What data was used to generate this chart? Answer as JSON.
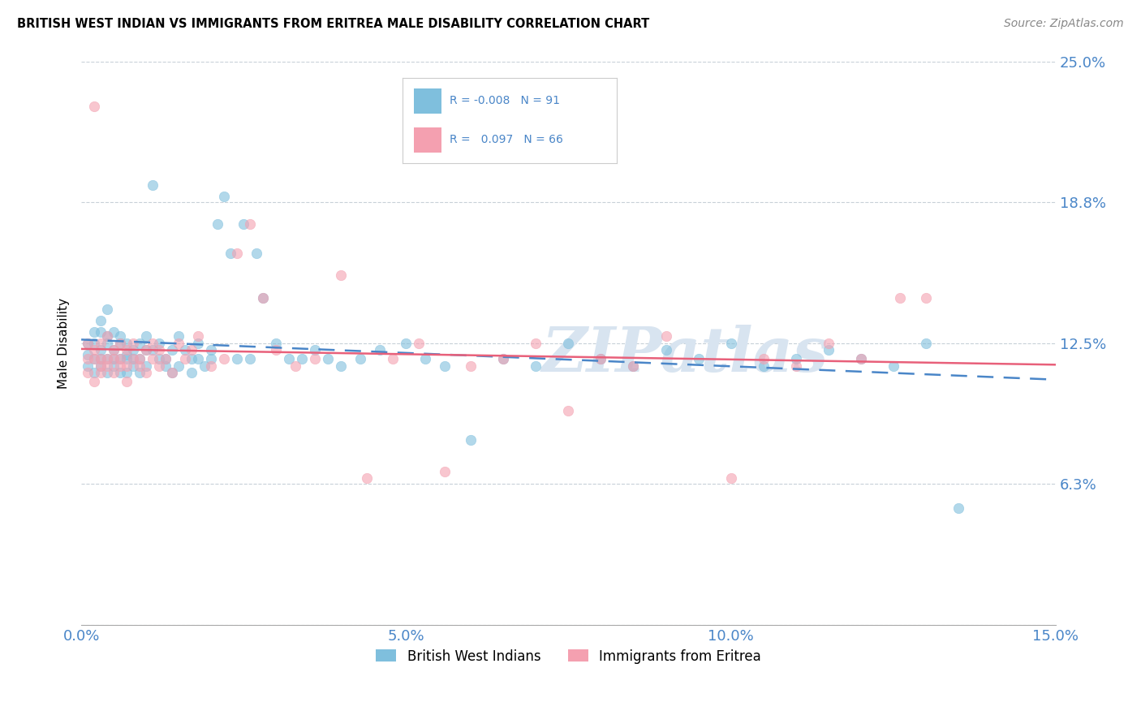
{
  "title": "BRITISH WEST INDIAN VS IMMIGRANTS FROM ERITREA MALE DISABILITY CORRELATION CHART",
  "source": "Source: ZipAtlas.com",
  "ylabel": "Male Disability",
  "xlim": [
    0.0,
    0.15
  ],
  "ylim": [
    0.0,
    0.25
  ],
  "yticks": [
    0.0,
    0.0625,
    0.125,
    0.1875,
    0.25
  ],
  "ytick_labels": [
    "",
    "6.3%",
    "12.5%",
    "18.8%",
    "25.0%"
  ],
  "xticks": [
    0.0,
    0.025,
    0.05,
    0.075,
    0.1,
    0.125,
    0.15
  ],
  "xtick_labels": [
    "0.0%",
    "",
    "5.0%",
    "",
    "10.0%",
    "",
    "15.0%"
  ],
  "color_blue": "#7fbfdd",
  "color_pink": "#f4a0b0",
  "color_trend_blue": "#4a86c8",
  "color_trend_pink": "#e8607a",
  "color_axis_labels": "#4a86c8",
  "color_grid": "#c8d0d8",
  "color_watermark": "#d8e4f0",
  "series1_name": "British West Indians",
  "series2_name": "Immigrants from Eritrea",
  "blue_x": [
    0.001,
    0.001,
    0.001,
    0.002,
    0.002,
    0.002,
    0.002,
    0.003,
    0.003,
    0.003,
    0.003,
    0.003,
    0.004,
    0.004,
    0.004,
    0.004,
    0.004,
    0.005,
    0.005,
    0.005,
    0.005,
    0.006,
    0.006,
    0.006,
    0.006,
    0.007,
    0.007,
    0.007,
    0.007,
    0.008,
    0.008,
    0.008,
    0.009,
    0.009,
    0.009,
    0.01,
    0.01,
    0.01,
    0.011,
    0.011,
    0.012,
    0.012,
    0.013,
    0.013,
    0.014,
    0.014,
    0.015,
    0.015,
    0.016,
    0.017,
    0.017,
    0.018,
    0.018,
    0.019,
    0.02,
    0.02,
    0.021,
    0.022,
    0.023,
    0.024,
    0.025,
    0.026,
    0.027,
    0.028,
    0.03,
    0.032,
    0.034,
    0.036,
    0.038,
    0.04,
    0.043,
    0.046,
    0.05,
    0.053,
    0.056,
    0.06,
    0.065,
    0.07,
    0.075,
    0.08,
    0.085,
    0.09,
    0.095,
    0.1,
    0.105,
    0.11,
    0.115,
    0.12,
    0.125,
    0.13,
    0.135
  ],
  "blue_y": [
    0.125,
    0.12,
    0.115,
    0.13,
    0.118,
    0.112,
    0.125,
    0.122,
    0.118,
    0.13,
    0.115,
    0.135,
    0.128,
    0.118,
    0.125,
    0.112,
    0.14,
    0.122,
    0.118,
    0.13,
    0.115,
    0.125,
    0.118,
    0.112,
    0.128,
    0.12,
    0.118,
    0.125,
    0.112,
    0.122,
    0.118,
    0.115,
    0.125,
    0.118,
    0.112,
    0.122,
    0.128,
    0.115,
    0.195,
    0.122,
    0.118,
    0.125,
    0.115,
    0.118,
    0.122,
    0.112,
    0.128,
    0.115,
    0.122,
    0.118,
    0.112,
    0.125,
    0.118,
    0.115,
    0.122,
    0.118,
    0.178,
    0.19,
    0.165,
    0.118,
    0.178,
    0.118,
    0.165,
    0.145,
    0.125,
    0.118,
    0.118,
    0.122,
    0.118,
    0.115,
    0.118,
    0.122,
    0.125,
    0.118,
    0.115,
    0.082,
    0.118,
    0.115,
    0.125,
    0.118,
    0.115,
    0.122,
    0.118,
    0.125,
    0.115,
    0.118,
    0.122,
    0.118,
    0.115,
    0.125,
    0.052
  ],
  "pink_x": [
    0.001,
    0.001,
    0.001,
    0.002,
    0.002,
    0.002,
    0.002,
    0.003,
    0.003,
    0.003,
    0.003,
    0.004,
    0.004,
    0.004,
    0.005,
    0.005,
    0.005,
    0.006,
    0.006,
    0.006,
    0.007,
    0.007,
    0.007,
    0.008,
    0.008,
    0.009,
    0.009,
    0.01,
    0.01,
    0.011,
    0.011,
    0.012,
    0.012,
    0.013,
    0.014,
    0.015,
    0.016,
    0.017,
    0.018,
    0.02,
    0.022,
    0.024,
    0.026,
    0.028,
    0.03,
    0.033,
    0.036,
    0.04,
    0.044,
    0.048,
    0.052,
    0.056,
    0.06,
    0.065,
    0.07,
    0.075,
    0.08,
    0.085,
    0.09,
    0.1,
    0.105,
    0.11,
    0.115,
    0.12,
    0.126,
    0.13
  ],
  "pink_y": [
    0.118,
    0.112,
    0.125,
    0.118,
    0.122,
    0.108,
    0.23,
    0.115,
    0.118,
    0.125,
    0.112,
    0.118,
    0.128,
    0.115,
    0.122,
    0.118,
    0.112,
    0.125,
    0.118,
    0.115,
    0.122,
    0.115,
    0.108,
    0.118,
    0.125,
    0.115,
    0.118,
    0.122,
    0.112,
    0.118,
    0.125,
    0.115,
    0.122,
    0.118,
    0.112,
    0.125,
    0.118,
    0.122,
    0.128,
    0.115,
    0.118,
    0.165,
    0.178,
    0.145,
    0.122,
    0.115,
    0.118,
    0.155,
    0.065,
    0.118,
    0.125,
    0.068,
    0.115,
    0.118,
    0.125,
    0.095,
    0.118,
    0.115,
    0.128,
    0.065,
    0.118,
    0.115,
    0.125,
    0.118,
    0.145,
    0.145
  ]
}
